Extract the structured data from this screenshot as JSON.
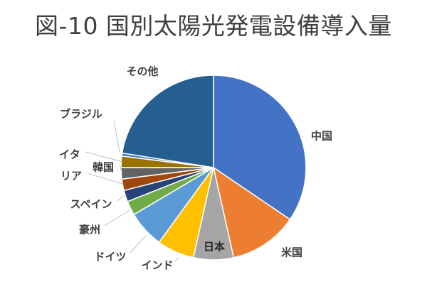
{
  "chart_data": {
    "type": "pie",
    "title": "図-10 国別太陽光発電設備導入量",
    "start_angle_deg": 0,
    "direction": "clockwise",
    "slices": [
      {
        "label": "中国",
        "value": 34.5,
        "color": "#4472C4"
      },
      {
        "label": "米国",
        "value": 12.0,
        "color": "#ED7D31"
      },
      {
        "label": "日本",
        "value": 7.0,
        "color": "#A5A5A5"
      },
      {
        "label": "インド",
        "value": 6.5,
        "color": "#FFC000"
      },
      {
        "label": "ドイツ",
        "value": 6.5,
        "color": "#5B9BD5"
      },
      {
        "label": "豪州",
        "value": 2.5,
        "color": "#70AD47"
      },
      {
        "label": "スペイン",
        "value": 2.0,
        "color": "#264478"
      },
      {
        "label": "リア",
        "value": 2.0,
        "color": "#9E480E"
      },
      {
        "label": "韓国",
        "value": 2.0,
        "color": "#636363"
      },
      {
        "label": "イタ",
        "value": 2.0,
        "color": "#997300"
      },
      {
        "label": "ブラジル",
        "value": 0.5,
        "color": "#2E75B6"
      },
      {
        "label": "その他",
        "value": 22.5,
        "color": "#255E91"
      }
    ]
  }
}
